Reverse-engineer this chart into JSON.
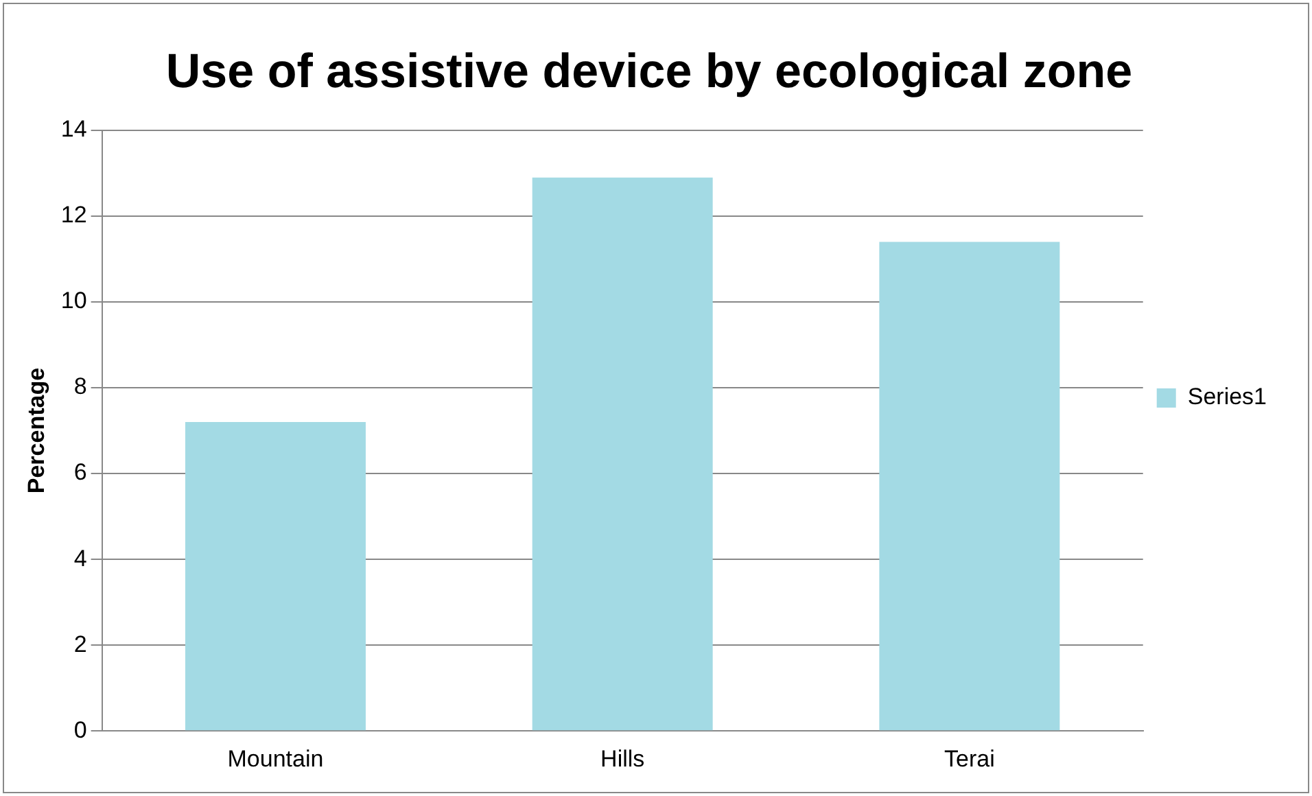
{
  "chart_data": {
    "type": "bar",
    "title": "Use of assistive device by ecological zone",
    "ylabel": "Percentage",
    "categories": [
      "Mountain",
      "Hills",
      "Terai"
    ],
    "series": [
      {
        "name": "Series1",
        "color": "#a3dae4",
        "values": [
          7.2,
          12.9,
          11.4
        ]
      }
    ],
    "ylim": [
      0,
      14
    ],
    "yticks": [
      0,
      2,
      4,
      6,
      8,
      10,
      12,
      14
    ],
    "grid": "y",
    "legend": "right"
  }
}
